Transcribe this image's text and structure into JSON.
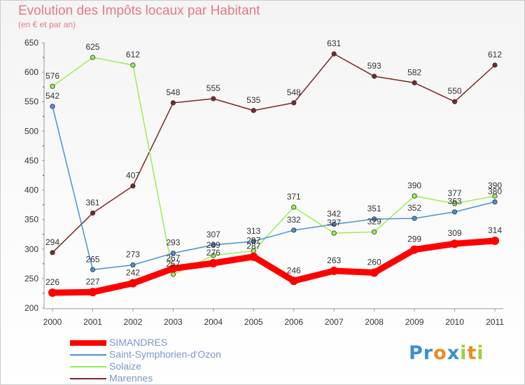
{
  "header": {
    "title": "Evolution des Impôts locaux par Habitant",
    "subtitle": "(en € et par an)"
  },
  "chart_data": {
    "type": "line",
    "title": "Evolution des Impôts locaux par Habitant",
    "subtitle": "(en € et par an)",
    "xlabel": "",
    "ylabel": "",
    "ylim": [
      200,
      650
    ],
    "yticks": [
      200,
      250,
      300,
      350,
      400,
      450,
      500,
      550,
      600,
      650
    ],
    "categories": [
      "2000",
      "2001",
      "2002",
      "2003",
      "2004",
      "2005",
      "2006",
      "2007",
      "2008",
      "2009",
      "2010",
      "2011"
    ],
    "grid": "none",
    "legend_position": "bottom-left",
    "series": [
      {
        "name": "SIMANDRES",
        "color": "#ff0000",
        "values": [
          226,
          227,
          242,
          267,
          276,
          287,
          246,
          263,
          260,
          299,
          309,
          314
        ],
        "labels": [
          "226",
          "227",
          "242",
          "267",
          "276",
          "287",
          "246",
          "263",
          "260",
          "299",
          "309",
          "314"
        ]
      },
      {
        "name": "Saint-Symphorien-d'Ozon",
        "color": "#4a90d9",
        "values": [
          542,
          265,
          273,
          293,
          307,
          313,
          332,
          342,
          351,
          352,
          363,
          380
        ],
        "labels": [
          "542",
          "265",
          "273",
          "293",
          "307",
          "313",
          "332",
          "342",
          "351",
          "352",
          "363",
          "380"
        ]
      },
      {
        "name": "Solaize",
        "color": "#99ee55",
        "values": [
          576,
          625,
          612,
          257,
          289,
          297,
          371,
          327,
          329,
          390,
          377,
          390
        ],
        "labels": [
          "576",
          "625",
          "612",
          "257",
          "289",
          "297",
          "371",
          "327",
          "329",
          "390",
          "377",
          "390"
        ]
      },
      {
        "name": "Marennes",
        "color": "#7a2828",
        "values": [
          294,
          361,
          407,
          548,
          555,
          535,
          548,
          631,
          593,
          582,
          550,
          612
        ],
        "labels": [
          "294",
          "361",
          "407",
          "548",
          "555",
          "535",
          "548",
          "631",
          "593",
          "582",
          "550",
          "612"
        ]
      }
    ]
  },
  "legend": {
    "items": [
      "SIMANDRES",
      "Saint-Symphorien-d'Ozon",
      "Solaize",
      "Marennes"
    ]
  },
  "logo": {
    "text": "Proxiti",
    "letters": [
      "P",
      "r",
      "o",
      "x",
      "i",
      "t",
      "i"
    ],
    "colors": [
      "#3a8fd6",
      "#3a8fd6",
      "#f08a1c",
      "#3a8fd6",
      "#9fcf3f",
      "#f08a1c",
      "#9fcf3f"
    ]
  }
}
